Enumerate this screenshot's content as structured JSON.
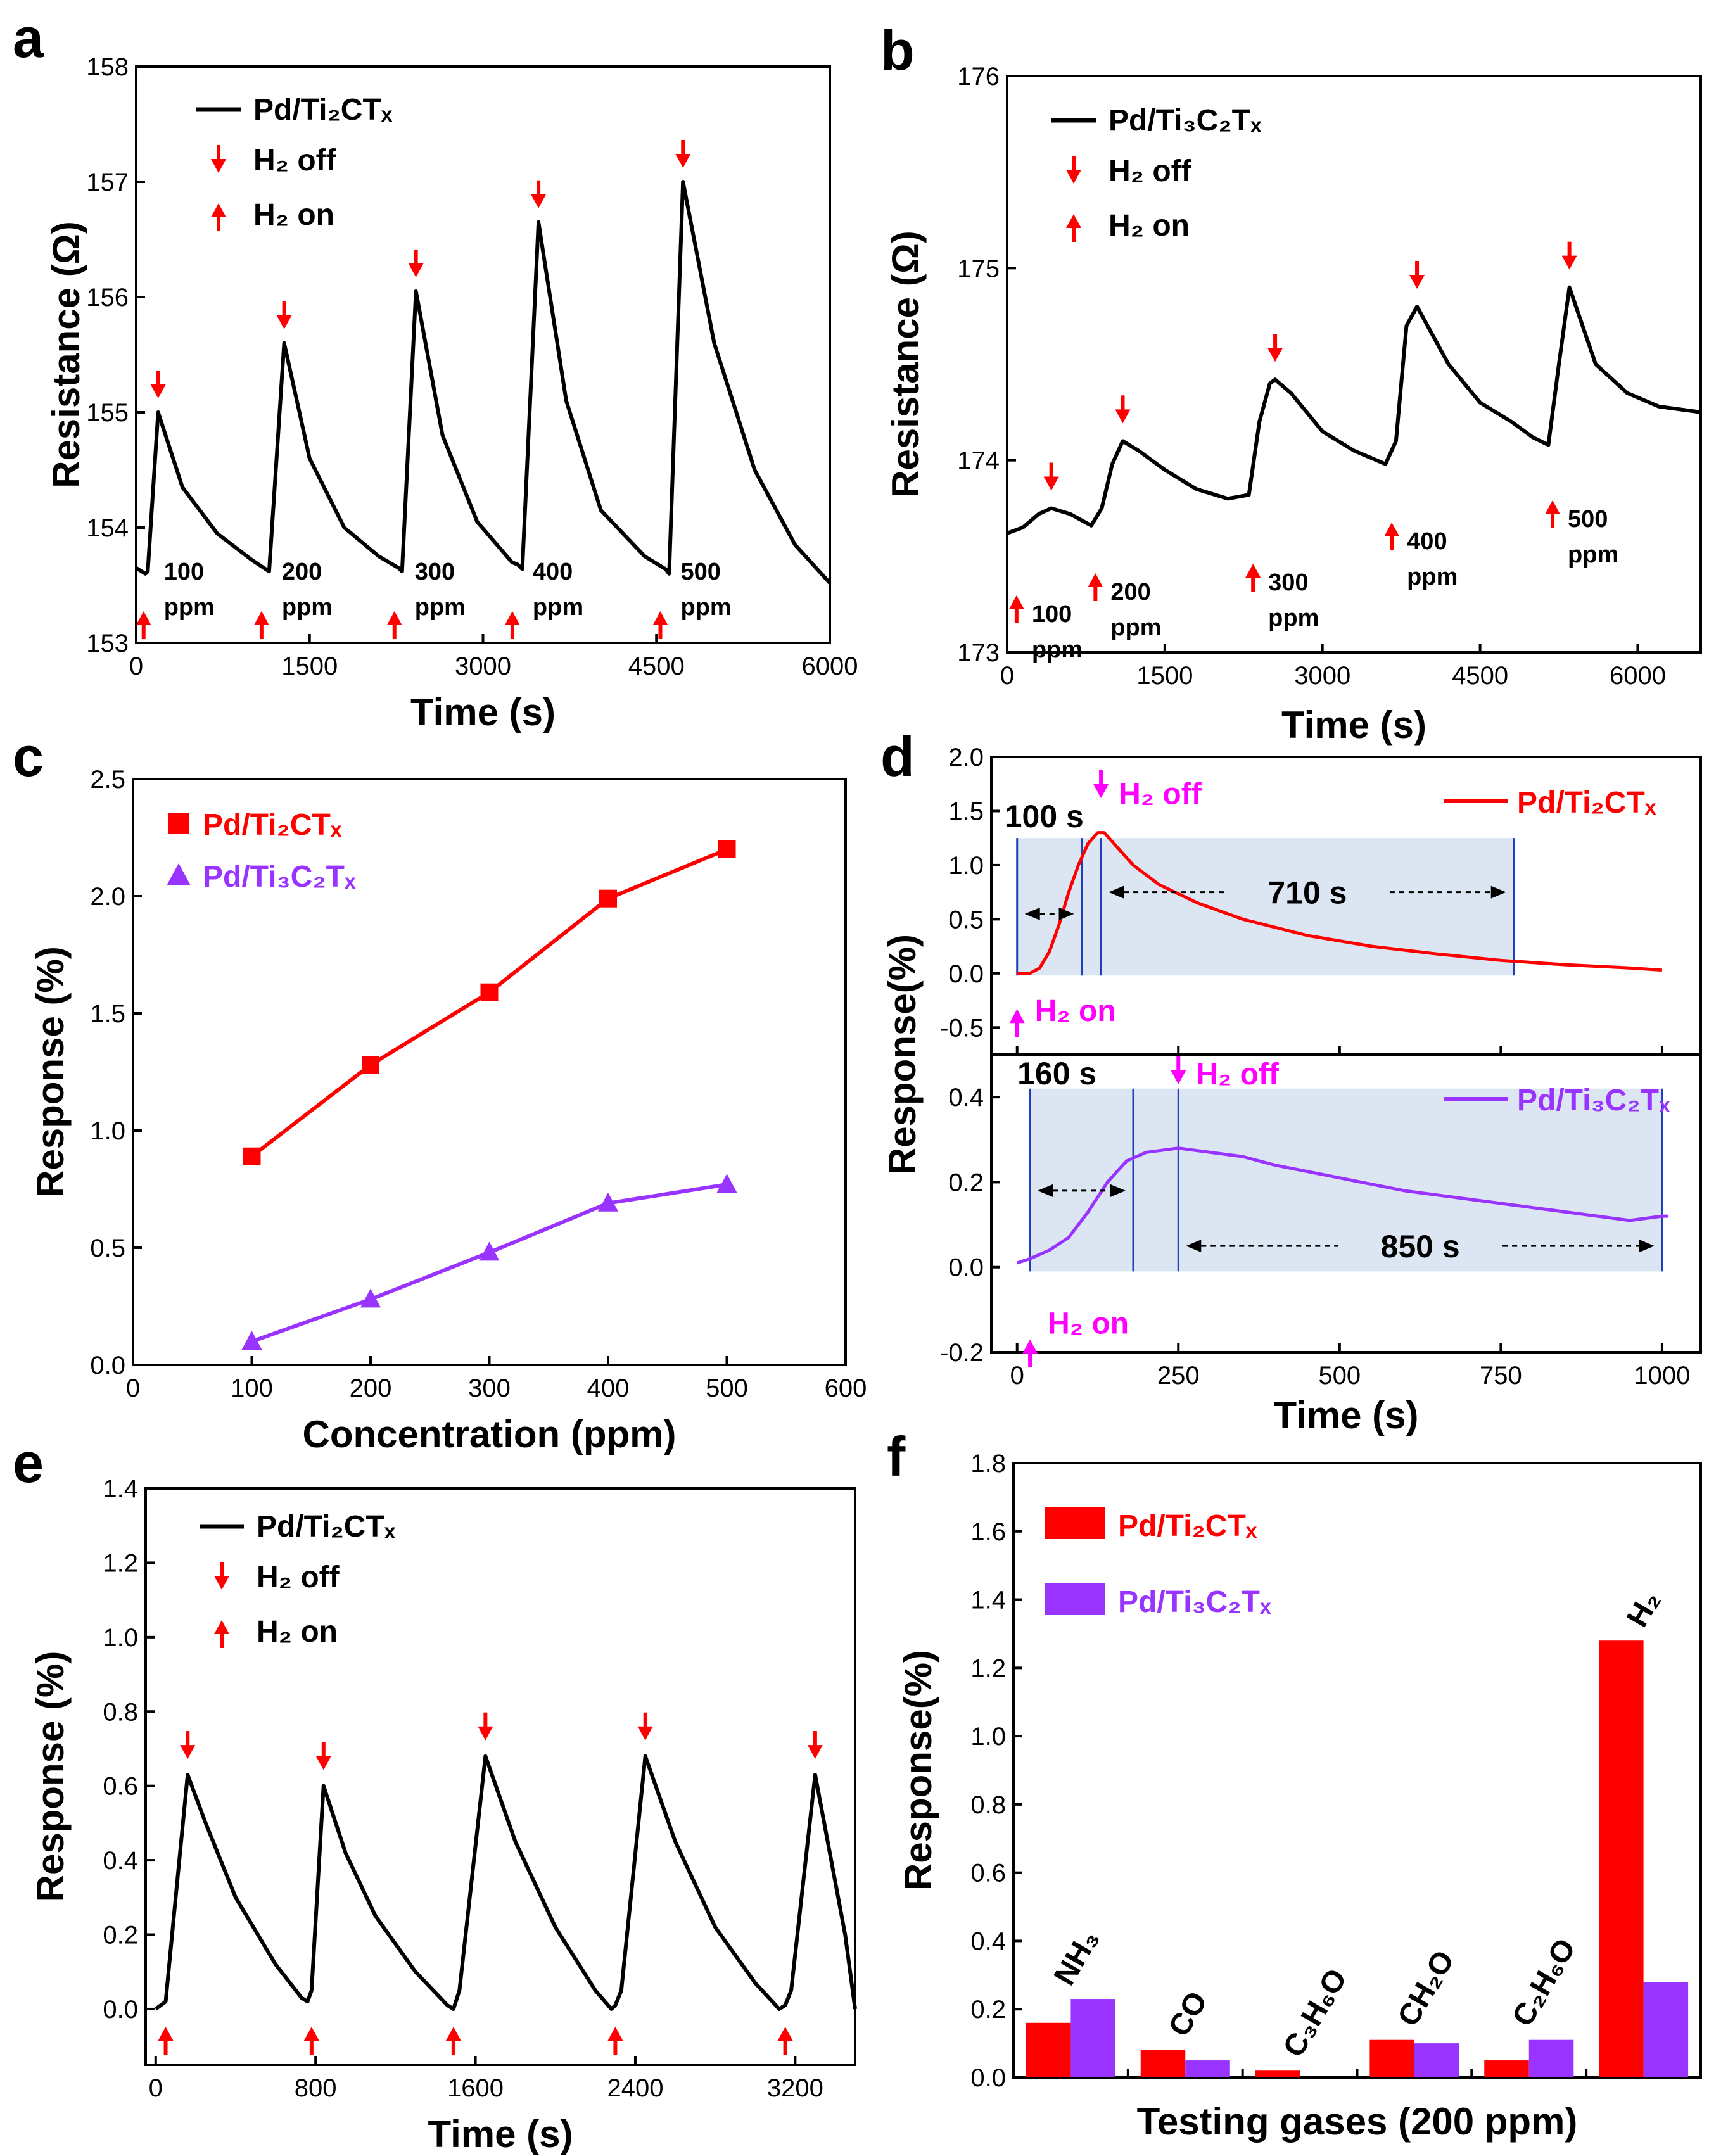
{
  "colors": {
    "black": "#000000",
    "red": "#ff0000",
    "purple": "#9933ff",
    "magenta": "#ff00ff",
    "shade": "#dce6f2",
    "blue_line": "#1f3fbf"
  },
  "chart_data": [
    {
      "id": "a",
      "type": "line",
      "letter": "a",
      "xlabel": "Time (s)",
      "ylabel": "Resistance (Ω)",
      "xlim": [
        0,
        6000
      ],
      "ylim": [
        153,
        158
      ],
      "xticks": [
        0,
        1500,
        3000,
        4500,
        6000
      ],
      "yticks": [
        153,
        154,
        155,
        156,
        157,
        158
      ],
      "legend": {
        "series": "Pd/Ti₂CTₓ",
        "off": "H₂ off",
        "on": "H₂ on"
      },
      "series": [
        {
          "name": "Pd/Ti₂CTₓ",
          "color": "#000000",
          "x": [
            0,
            80,
            100,
            190,
            400,
            700,
            1000,
            1120,
            1150,
            1280,
            1500,
            1800,
            2100,
            2270,
            2300,
            2420,
            2650,
            2950,
            3250,
            3300,
            3340,
            3480,
            3720,
            4020,
            4400,
            4580,
            4610,
            4730,
            5000,
            5350,
            5700,
            6000
          ],
          "y": [
            153.65,
            153.6,
            153.62,
            155.0,
            154.35,
            153.95,
            153.72,
            153.64,
            153.62,
            155.6,
            154.6,
            154.0,
            153.75,
            153.65,
            153.62,
            156.05,
            154.8,
            154.05,
            153.7,
            153.68,
            153.64,
            156.65,
            155.1,
            154.15,
            153.75,
            153.64,
            153.6,
            157.0,
            155.6,
            154.5,
            153.85,
            153.52
          ]
        }
      ],
      "on_markers": [
        {
          "x": 130,
          "label": "100 ppm"
        },
        {
          "x": 1150,
          "label": "200 ppm"
        },
        {
          "x": 2300,
          "label": "300 ppm"
        },
        {
          "x": 3320,
          "label": "400 ppm"
        },
        {
          "x": 4600,
          "label": "500 ppm"
        }
      ],
      "off_markers": [
        190,
        1280,
        2420,
        3480,
        4730
      ]
    },
    {
      "id": "b",
      "type": "line",
      "letter": "b",
      "xlabel": "Time (s)",
      "ylabel": "Resistance (Ω)",
      "xlim": [
        0,
        6600
      ],
      "ylim": [
        173,
        176
      ],
      "xticks": [
        0,
        1500,
        3000,
        4500,
        6000
      ],
      "yticks": [
        173,
        174,
        175,
        176
      ],
      "legend": {
        "series": "Pd/Ti₃C₂Tₓ",
        "off": "H₂ off",
        "on": "H₂ on"
      },
      "series": [
        {
          "name": "Pd/Ti₃C₂Tₓ",
          "color": "#000000",
          "x": [
            0,
            150,
            300,
            420,
            600,
            800,
            900,
            1000,
            1100,
            1250,
            1500,
            1800,
            2100,
            2300,
            2400,
            2500,
            2550,
            2700,
            3000,
            3300,
            3600,
            3700,
            3800,
            3900,
            4200,
            4500,
            4800,
            5000,
            5150,
            5250,
            5350,
            5600,
            5900,
            6200,
            6600
          ],
          "y": [
            173.62,
            173.65,
            173.72,
            173.75,
            173.72,
            173.66,
            173.75,
            173.98,
            174.1,
            174.05,
            173.95,
            173.85,
            173.8,
            173.82,
            174.2,
            174.4,
            174.42,
            174.35,
            174.15,
            174.05,
            173.98,
            174.1,
            174.7,
            174.8,
            174.5,
            174.3,
            174.2,
            174.12,
            174.08,
            174.5,
            174.9,
            174.5,
            174.35,
            174.28,
            174.25
          ]
        }
      ],
      "on_markers": [
        {
          "x": 150,
          "label": "100 ppm"
        },
        {
          "x": 900,
          "label": "200 ppm"
        },
        {
          "x": 2400,
          "label": "300 ppm"
        },
        {
          "x": 3720,
          "label": "400 ppm"
        },
        {
          "x": 5250,
          "label": "500 ppm"
        }
      ],
      "off_markers": [
        420,
        1100,
        2550,
        3900,
        5350
      ]
    },
    {
      "id": "c",
      "type": "line",
      "letter": "c",
      "xlabel": "Concentration (ppm)",
      "ylabel": "Response (%)",
      "xlim": [
        0,
        600
      ],
      "ylim": [
        0.0,
        2.5
      ],
      "xticks": [
        0,
        100,
        200,
        300,
        400,
        500,
        600
      ],
      "yticks": [
        0.0,
        0.5,
        1.0,
        1.5,
        2.0,
        2.5
      ],
      "series": [
        {
          "name": "Pd/Ti₂CTₓ",
          "color": "#ff0000",
          "marker": "square",
          "x": [
            100,
            200,
            300,
            400,
            500
          ],
          "y": [
            0.89,
            1.28,
            1.59,
            1.99,
            2.2
          ]
        },
        {
          "name": "Pd/Ti₃C₂Tₓ",
          "color": "#9933ff",
          "marker": "triangle",
          "x": [
            100,
            200,
            300,
            400,
            500
          ],
          "y": [
            0.1,
            0.28,
            0.48,
            0.69,
            0.77
          ]
        }
      ]
    },
    {
      "id": "d_top",
      "type": "line",
      "letter": "d",
      "xlabel": "Time (s)",
      "ylabel": "Response(%)",
      "xlim": [
        -40,
        1060
      ],
      "ylim": [
        -0.75,
        2.0
      ],
      "xticks": [
        0,
        250,
        500,
        750,
        1000
      ],
      "yticks": [
        -0.5,
        0.0,
        0.5,
        1.0,
        1.5,
        2.0
      ],
      "series": [
        {
          "name": "Pd/Ti₂CTₓ",
          "color": "#ff0000",
          "x": [
            0,
            20,
            35,
            50,
            65,
            80,
            95,
            110,
            125,
            135,
            150,
            180,
            220,
            280,
            350,
            450,
            550,
            650,
            750,
            850,
            950,
            1000
          ],
          "y": [
            0.0,
            0.0,
            0.05,
            0.2,
            0.45,
            0.75,
            1.0,
            1.2,
            1.3,
            1.3,
            1.2,
            1.0,
            0.82,
            0.65,
            0.5,
            0.35,
            0.25,
            0.18,
            0.12,
            0.08,
            0.05,
            0.03
          ]
        }
      ],
      "shade": [
        0,
        770
      ],
      "vlines": [
        0,
        100,
        130,
        770
      ],
      "t_on": 0,
      "t_off": 130,
      "resp_label": "100 s",
      "rec_label": "710 s",
      "on_label": "H₂ on",
      "off_label": "H₂ off"
    },
    {
      "id": "d_bottom",
      "type": "line",
      "xlabel": "Time (s)",
      "ylabel": "Response(%)",
      "xlim": [
        -40,
        1060
      ],
      "ylim": [
        -0.2,
        0.5
      ],
      "xticks": [
        0,
        250,
        500,
        750,
        1000
      ],
      "yticks": [
        -0.2,
        0.0,
        0.2,
        0.4
      ],
      "series": [
        {
          "name": "Pd/Ti₃C₂Tₓ",
          "color": "#9933ff",
          "x": [
            0,
            20,
            50,
            80,
            110,
            140,
            170,
            200,
            250,
            300,
            350,
            400,
            500,
            600,
            700,
            800,
            900,
            950,
            1000,
            1010
          ],
          "y": [
            0.01,
            0.02,
            0.04,
            0.07,
            0.13,
            0.2,
            0.25,
            0.27,
            0.28,
            0.27,
            0.26,
            0.24,
            0.21,
            0.18,
            0.16,
            0.14,
            0.12,
            0.11,
            0.12,
            0.12
          ]
        }
      ],
      "shade": [
        20,
        1000
      ],
      "vlines": [
        20,
        180,
        250,
        1000
      ],
      "t_on": 20,
      "t_off": 250,
      "resp_label": "160 s",
      "rec_label": "850 s",
      "on_label": "H₂ on",
      "off_label": "H₂ off"
    },
    {
      "id": "e",
      "type": "line",
      "letter": "e",
      "xlabel": "Time (s)",
      "ylabel": "Response (%)",
      "xlim": [
        -50,
        3500
      ],
      "ylim": [
        -0.15,
        1.4
      ],
      "xticks": [
        0,
        800,
        1600,
        2400,
        3200
      ],
      "yticks": [
        0.0,
        0.2,
        0.4,
        0.6,
        0.8,
        1.0,
        1.2,
        1.4
      ],
      "legend": {
        "series": "Pd/Ti₂CTₓ",
        "off": "H₂ off",
        "on": "H₂ on"
      },
      "series": [
        {
          "name": "Pd/Ti₂CTₓ",
          "color": "#000000",
          "x": [
            0,
            50,
            100,
            160,
            250,
            400,
            600,
            730,
            760,
            780,
            840,
            950,
            1100,
            1300,
            1460,
            1490,
            1520,
            1650,
            1800,
            2000,
            2200,
            2280,
            2300,
            2330,
            2450,
            2600,
            2800,
            3000,
            3120,
            3150,
            3180,
            3300,
            3450,
            3500
          ],
          "y": [
            0.0,
            0.02,
            0.3,
            0.63,
            0.5,
            0.3,
            0.12,
            0.03,
            0.02,
            0.05,
            0.6,
            0.42,
            0.25,
            0.1,
            0.01,
            0.0,
            0.05,
            0.68,
            0.45,
            0.22,
            0.05,
            0.0,
            0.01,
            0.05,
            0.68,
            0.45,
            0.22,
            0.07,
            0.0,
            0.01,
            0.05,
            0.63,
            0.2,
            0.0
          ]
        }
      ],
      "on_markers": [
        50,
        780,
        1490,
        2300,
        3150
      ],
      "off_markers": [
        160,
        840,
        1650,
        2450,
        3300
      ]
    },
    {
      "id": "f",
      "type": "bar",
      "letter": "f",
      "xlabel": "Testing gases (200 ppm)",
      "ylabel": "Response(%)",
      "ylim": [
        0.0,
        1.8
      ],
      "yticks": [
        0.0,
        0.2,
        0.4,
        0.6,
        0.8,
        1.0,
        1.2,
        1.4,
        1.6,
        1.8
      ],
      "categories": [
        "NH₃",
        "CO",
        "C₃H₆O",
        "CH₂O",
        "C₂H₆O",
        "H₂"
      ],
      "series": [
        {
          "name": "Pd/Ti₂CTₓ",
          "color": "#ff0000",
          "values": [
            0.16,
            0.08,
            0.02,
            0.11,
            0.05,
            1.28
          ]
        },
        {
          "name": "Pd/Ti₃C₂Tₓ",
          "color": "#9933ff",
          "values": [
            0.23,
            0.05,
            0.0,
            0.1,
            0.11,
            0.28
          ]
        }
      ]
    }
  ]
}
